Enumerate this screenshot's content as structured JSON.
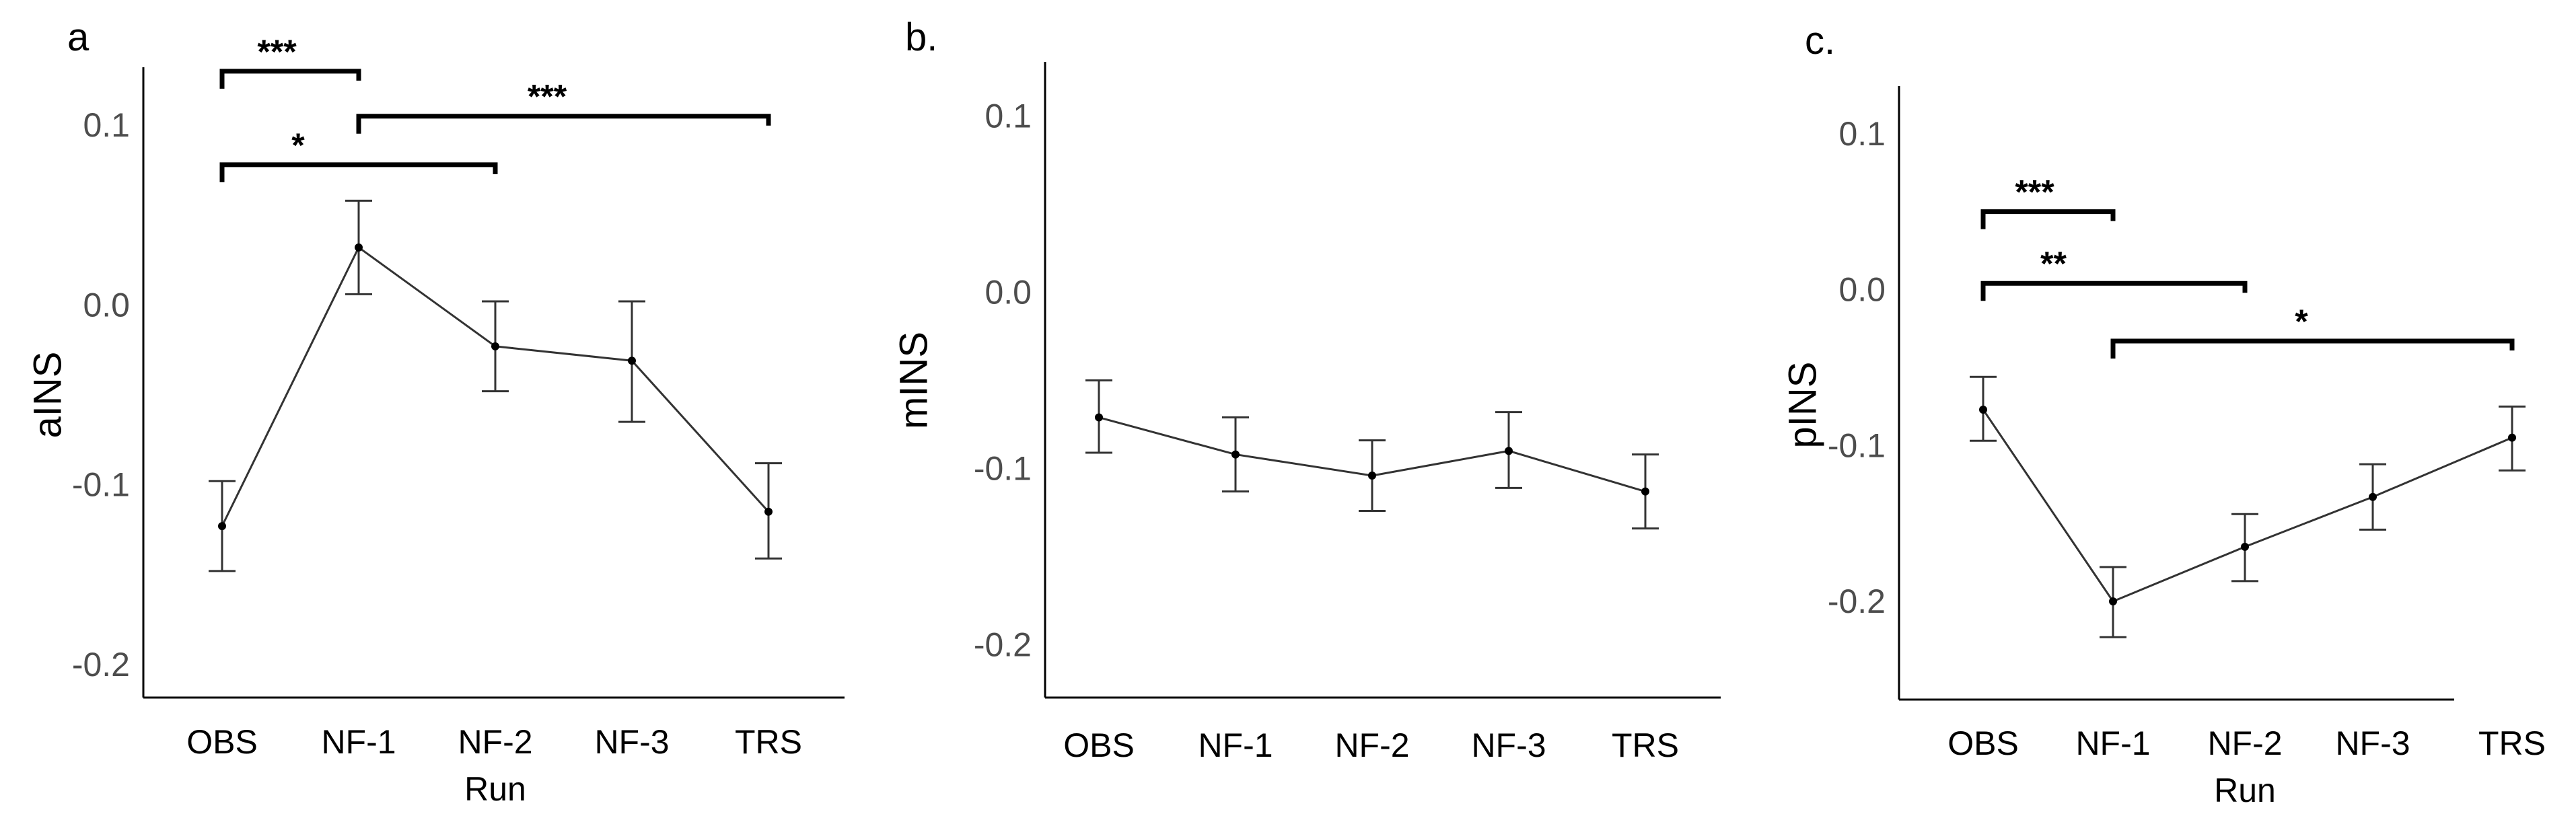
{
  "chart_data": [
    {
      "type": "line",
      "panel_label": "a",
      "ylabel": "aINS",
      "xlabel": "Run",
      "ylim": [
        -0.215,
        0.115
      ],
      "yticks": [
        0.1,
        0.0,
        -0.1,
        -0.2
      ],
      "ytick_labels": [
        "0.1",
        "0.0",
        "-0.1",
        "-0.2"
      ],
      "categories": [
        "OBS",
        "NF-1",
        "NF-2",
        "NF-3",
        "TRS"
      ],
      "values": [
        -0.123,
        0.032,
        -0.023,
        -0.031,
        -0.115
      ],
      "err_low": [
        -0.148,
        0.006,
        -0.048,
        -0.065,
        -0.141
      ],
      "err_high": [
        -0.098,
        0.058,
        0.002,
        0.002,
        -0.088
      ],
      "annotations": [
        {
          "label": "***",
          "from": 0,
          "to": 1,
          "y": 0.13
        },
        {
          "label": "***",
          "from": 1,
          "to": 4,
          "y": 0.105
        },
        {
          "label": "*",
          "from": 0,
          "to": 2,
          "y": 0.078
        }
      ]
    },
    {
      "type": "line",
      "panel_label": "b.",
      "ylabel": "mINS",
      "xlabel": "",
      "ylim": [
        -0.215,
        0.115
      ],
      "yticks": [
        0.1,
        0.0,
        -0.1,
        -0.2
      ],
      "ytick_labels": [
        "0.1",
        "0.0",
        "-0.1",
        "-0.2"
      ],
      "categories": [
        "OBS",
        "NF-1",
        "NF-2",
        "NF-3",
        "TRS"
      ],
      "values": [
        -0.071,
        -0.092,
        -0.104,
        -0.09,
        -0.113
      ],
      "err_low": [
        -0.091,
        -0.113,
        -0.124,
        -0.111,
        -0.134
      ],
      "err_high": [
        -0.05,
        -0.071,
        -0.084,
        -0.068,
        -0.092
      ],
      "annotations": []
    },
    {
      "type": "line",
      "panel_label": "c.",
      "ylabel": "pINS",
      "xlabel": "Run",
      "ylim": [
        -0.263,
        0.115
      ],
      "yticks": [
        0.1,
        0.0,
        -0.1,
        -0.2
      ],
      "ytick_labels": [
        "0.1",
        "0.0",
        "-0.1",
        "-0.2"
      ],
      "categories": [
        "OBS",
        "NF-1",
        "NF-2",
        "NF-3",
        "TRS"
      ],
      "values": [
        -0.077,
        -0.2,
        -0.165,
        -0.133,
        -0.095
      ],
      "err_low": [
        -0.097,
        -0.223,
        -0.187,
        -0.154,
        -0.116
      ],
      "err_high": [
        -0.056,
        -0.178,
        -0.144,
        -0.112,
        -0.075
      ],
      "annotations": [
        {
          "label": "***",
          "from": 0,
          "to": 1,
          "y": 0.05
        },
        {
          "label": "**",
          "from": 0,
          "to": 2,
          "y": 0.004
        },
        {
          "label": "*",
          "from": 1,
          "to": 4,
          "y": -0.033
        }
      ]
    }
  ]
}
